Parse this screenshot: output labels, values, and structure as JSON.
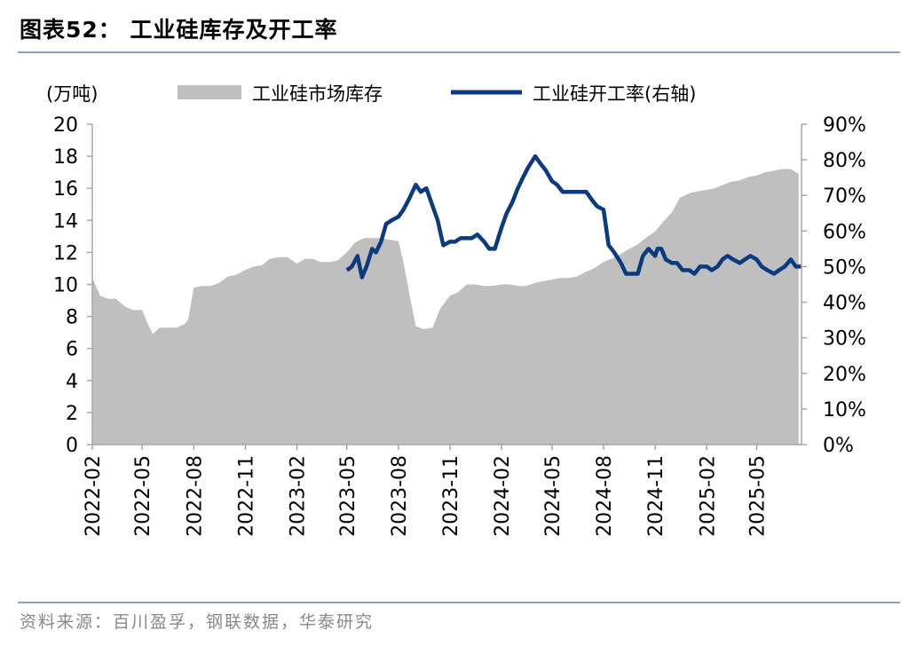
{
  "figure_title": "图表52：   工业硅库存及开工率",
  "source": "资料来源：百川盈孚，钢联数据，华泰研究",
  "chart_data": {
    "type": "area",
    "left_unit": "(万吨)",
    "x_ticks": [
      "2022-02",
      "2022-05",
      "2022-08",
      "2022-11",
      "2023-02",
      "2023-05",
      "2023-08",
      "2023-11",
      "2024-02",
      "2024-05",
      "2024-08",
      "2024-11",
      "2025-02",
      "2025-05"
    ],
    "y_left": {
      "min": 0,
      "max": 20,
      "ticks": [
        "0",
        "2",
        "4",
        "6",
        "8",
        "10",
        "12",
        "14",
        "16",
        "18",
        "20"
      ]
    },
    "y_right": {
      "min": 0,
      "max": 90,
      "ticks": [
        "0%",
        "10%",
        "20%",
        "30%",
        "40%",
        "50%",
        "60%",
        "70%",
        "80%",
        "90%"
      ]
    },
    "colors": {
      "inventory": "#bfbfbf",
      "utilization": "#0b3a7e"
    },
    "series": [
      {
        "name": "工业硅市场库存",
        "axis": "left",
        "kind": "area",
        "x": [
          "2022-02-01",
          "2022-02-15",
          "2022-03-01",
          "2022-03-15",
          "2022-04-01",
          "2022-04-15",
          "2022-05-01",
          "2022-05-10",
          "2022-05-20",
          "2022-06-01",
          "2022-06-15",
          "2022-07-01",
          "2022-07-15",
          "2022-07-22",
          "2022-08-01",
          "2022-08-15",
          "2022-09-01",
          "2022-09-15",
          "2022-10-01",
          "2022-10-15",
          "2022-11-01",
          "2022-11-15",
          "2022-12-01",
          "2022-12-15",
          "2023-01-01",
          "2023-01-15",
          "2023-02-01",
          "2023-02-15",
          "2023-03-01",
          "2023-03-15",
          "2023-04-01",
          "2023-04-15",
          "2023-05-01",
          "2023-05-15",
          "2023-06-01",
          "2023-06-15",
          "2023-07-01",
          "2023-07-15",
          "2023-08-01",
          "2023-08-10",
          "2023-08-20",
          "2023-09-01",
          "2023-09-15",
          "2023-10-01",
          "2023-10-15",
          "2023-11-01",
          "2023-11-15",
          "2023-12-01",
          "2023-12-15",
          "2024-01-01",
          "2024-01-15",
          "2024-02-01",
          "2024-02-15",
          "2024-03-01",
          "2024-03-15",
          "2024-04-01",
          "2024-04-15",
          "2024-05-01",
          "2024-05-15",
          "2024-06-01",
          "2024-06-15",
          "2024-07-01",
          "2024-07-15",
          "2024-08-01",
          "2024-08-15",
          "2024-09-01",
          "2024-09-15",
          "2024-10-01",
          "2024-10-15",
          "2024-11-01",
          "2024-11-15",
          "2024-12-01",
          "2024-12-15",
          "2025-01-01",
          "2025-01-15",
          "2025-02-01",
          "2025-02-15",
          "2025-03-01",
          "2025-03-15",
          "2025-04-01",
          "2025-04-15",
          "2025-05-01",
          "2025-05-15",
          "2025-06-01",
          "2025-06-15",
          "2025-07-01",
          "2025-07-15"
        ],
        "values": [
          10.4,
          9.3,
          9.1,
          9.1,
          8.6,
          8.4,
          8.4,
          7.6,
          6.9,
          7.3,
          7.3,
          7.3,
          7.5,
          7.8,
          9.8,
          9.9,
          9.9,
          10.1,
          10.5,
          10.6,
          10.9,
          11.1,
          11.2,
          11.6,
          11.7,
          11.7,
          11.3,
          11.6,
          11.6,
          11.4,
          11.4,
          11.5,
          12.0,
          12.6,
          12.9,
          12.9,
          12.9,
          12.8,
          12.7,
          11.4,
          9.5,
          7.4,
          7.2,
          7.3,
          8.5,
          9.3,
          9.5,
          10.0,
          10.0,
          9.9,
          9.9,
          10.0,
          10.0,
          9.9,
          9.9,
          10.1,
          10.2,
          10.3,
          10.4,
          10.4,
          10.5,
          10.8,
          11.0,
          11.4,
          11.6,
          11.9,
          12.2,
          12.5,
          12.9,
          13.3,
          13.9,
          14.5,
          15.4,
          15.7,
          15.8,
          15.9,
          16.0,
          16.2,
          16.4,
          16.5,
          16.7,
          16.8,
          17.0,
          17.1,
          17.2,
          17.2,
          16.9
        ]
      },
      {
        "name": "工业硅开工率(右轴)",
        "axis": "right",
        "kind": "line",
        "x": [
          "2023-05-01",
          "2023-05-10",
          "2023-05-20",
          "2023-05-28",
          "2023-06-05",
          "2023-06-15",
          "2023-06-22",
          "2023-07-01",
          "2023-07-10",
          "2023-07-20",
          "2023-08-01",
          "2023-08-10",
          "2023-08-20",
          "2023-09-01",
          "2023-09-10",
          "2023-09-20",
          "2023-10-01",
          "2023-10-10",
          "2023-10-20",
          "2023-11-01",
          "2023-11-10",
          "2023-11-20",
          "2023-12-01",
          "2023-12-10",
          "2023-12-20",
          "2024-01-01",
          "2024-01-10",
          "2024-01-20",
          "2024-02-01",
          "2024-02-10",
          "2024-02-20",
          "2024-03-01",
          "2024-03-10",
          "2024-03-20",
          "2024-04-01",
          "2024-04-10",
          "2024-04-20",
          "2024-05-01",
          "2024-05-10",
          "2024-05-20",
          "2024-06-01",
          "2024-06-10",
          "2024-06-20",
          "2024-07-01",
          "2024-07-10",
          "2024-07-20",
          "2024-08-01",
          "2024-08-10",
          "2024-08-20",
          "2024-09-01",
          "2024-09-10",
          "2024-09-20",
          "2024-10-01",
          "2024-10-10",
          "2024-10-20",
          "2024-11-01",
          "2024-11-05",
          "2024-11-12",
          "2024-11-20",
          "2024-12-01",
          "2024-12-10",
          "2024-12-20",
          "2025-01-01",
          "2025-01-10",
          "2025-01-20",
          "2025-02-01",
          "2025-02-10",
          "2025-02-20",
          "2025-03-01",
          "2025-03-10",
          "2025-03-20",
          "2025-04-01",
          "2025-04-10",
          "2025-04-20",
          "2025-05-01",
          "2025-05-10",
          "2025-05-20",
          "2025-06-01",
          "2025-06-10",
          "2025-06-20",
          "2025-07-01",
          "2025-07-10",
          "2025-07-20"
        ],
        "values": [
          49,
          50,
          53,
          47,
          50,
          55,
          54,
          57,
          62,
          63,
          64,
          66,
          69,
          73,
          71,
          72,
          67,
          63,
          56,
          57,
          57,
          58,
          58,
          58,
          59,
          57,
          55,
          55,
          61,
          65,
          68,
          72,
          75,
          78,
          81,
          79,
          77,
          74,
          73,
          71,
          71,
          71,
          71,
          71,
          69,
          67,
          66,
          56,
          54,
          51,
          48,
          48,
          48,
          53,
          55,
          53,
          55,
          55,
          52,
          51,
          51,
          49,
          49,
          48,
          50,
          50,
          49,
          50,
          52,
          53,
          52,
          51,
          52,
          53,
          52,
          50,
          49,
          48,
          49,
          50,
          52,
          50,
          50
        ]
      }
    ]
  }
}
